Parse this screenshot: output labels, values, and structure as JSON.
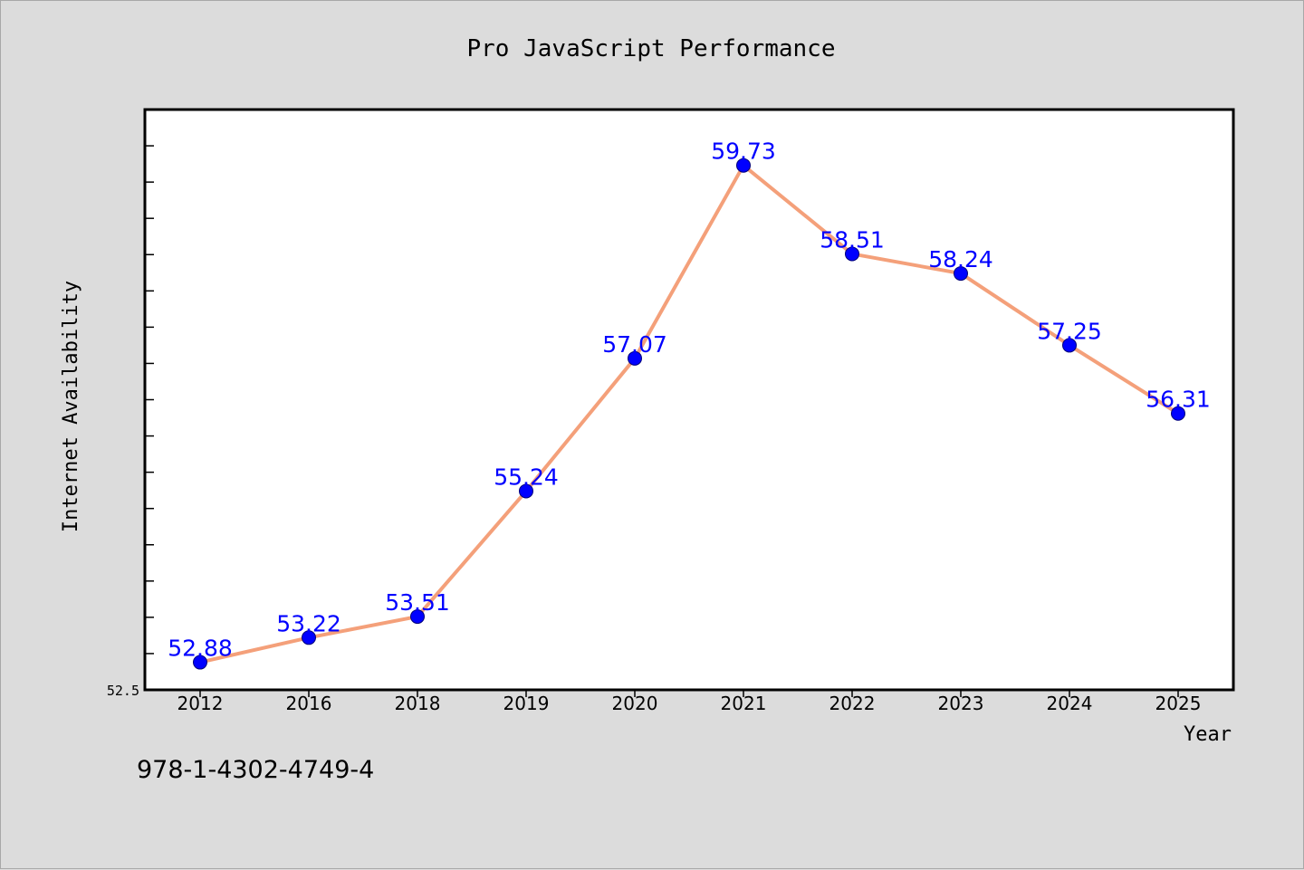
{
  "chart_data": {
    "type": "line",
    "title": "Pro JavaScript Performance",
    "xlabel": "Year",
    "ylabel": "Internet Availability",
    "categories": [
      "2012",
      "2016",
      "2018",
      "2019",
      "2020",
      "2021",
      "2022",
      "2023",
      "2024",
      "2025"
    ],
    "series": [
      {
        "values": [
          52.88,
          53.22,
          53.51,
          55.24,
          57.07,
          59.73,
          58.51,
          58.24,
          57.25,
          56.31
        ],
        "labels": [
          "52.88",
          "53.22",
          "53.51",
          "55.24",
          "57.07",
          "59.73",
          "58.51",
          "58.24",
          "57.25",
          "56.31"
        ],
        "line_color": "#f4a07a",
        "marker_color": "#0000ff"
      }
    ],
    "ylim": [
      52.5,
      60.5
    ],
    "ytick_labels": [
      "52.5"
    ],
    "grid": false,
    "legend": "none"
  },
  "footer": {
    "text": "978-1-4302-4749-4"
  }
}
